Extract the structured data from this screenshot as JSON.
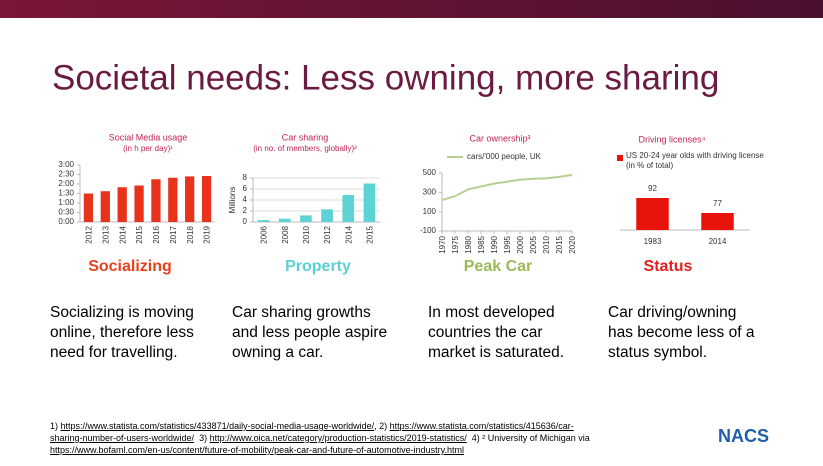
{
  "slide": {
    "title": "Societal needs: Less owning, more sharing",
    "panels": [
      {
        "caption": "Socializing",
        "color": "#e8401c",
        "text": [
          "Socializing is moving",
          "online, therefore less",
          "need for travelling."
        ]
      },
      {
        "caption": "Property",
        "color": "#5ccfd6",
        "text": [
          "Car sharing growths",
          "and less people aspire",
          "owning a car."
        ]
      },
      {
        "caption": "Peak Car",
        "color": "#9bbb59",
        "text": [
          "In most developed",
          "countries the car",
          "market is saturated."
        ]
      },
      {
        "caption": "Status",
        "color": "#e0201c",
        "text": [
          "Car driving/owning",
          "has become less of a",
          "status symbol."
        ]
      }
    ],
    "footnotes": [
      [
        "1) ",
        {
          "link": "https://www.statista.com/statistics/433871/daily-social-media-usage-worldwide/"
        },
        ", 2) ",
        {
          "link": "https://www.statista.com/statistics/415636/car-"
        }
      ],
      [
        {
          "link": "sharing-number-of-users-worldwide/"
        },
        "  3) ",
        {
          "link": "http://www.oica.net/category/production-statistics/2019-statistics/"
        },
        "  4) ² University of Michigan via"
      ],
      [
        {
          "link": "https://www.bofaml.com/en-us/content/future-of-mobility/peak-car-and-future-of-automotive-industry.html"
        }
      ]
    ],
    "logo": "NACS"
  },
  "chart_data": [
    {
      "type": "bar",
      "title": "Social Media usage",
      "subtitle": "(in h per day)¹",
      "color": "#e8331c",
      "categories": [
        "2012",
        "2013",
        "2014",
        "2015",
        "2016",
        "2017",
        "2018",
        "2019"
      ],
      "values": [
        1.5,
        1.62,
        1.83,
        1.92,
        2.25,
        2.33,
        2.4,
        2.42
      ],
      "ylim": [
        0,
        3
      ],
      "yticks": [
        {
          "value": 0,
          "label": "0:00"
        },
        {
          "value": 0.5,
          "label": "0:30"
        },
        {
          "value": 1,
          "label": "1:00"
        },
        {
          "value": 1.5,
          "label": "1:30"
        },
        {
          "value": 2,
          "label": "2:00"
        },
        {
          "value": 2.5,
          "label": "2:30"
        },
        {
          "value": 3,
          "label": "3:00"
        }
      ],
      "grid": false
    },
    {
      "type": "bar",
      "title": "Car sharing",
      "subtitle": "(in no. of members, globally)²",
      "y_label": "Millions",
      "color": "#5dd3d6",
      "categories": [
        "2006",
        "2008",
        "2010",
        "2012",
        "2014",
        "2015"
      ],
      "values": [
        0.35,
        0.6,
        1.2,
        2.3,
        4.9,
        7.0
      ],
      "ylim": [
        0,
        8
      ],
      "yticks": [
        0,
        2,
        4,
        6,
        8
      ],
      "grid": true
    },
    {
      "type": "line",
      "title": "Car ownership³",
      "x": [
        1970,
        1975,
        1980,
        1985,
        1990,
        1995,
        2000,
        2005,
        2010,
        2015,
        2020
      ],
      "xlim": [
        1970,
        2020
      ],
      "xticks": [
        1970,
        1975,
        1980,
        1985,
        1990,
        1995,
        2000,
        2005,
        2010,
        2015,
        2020
      ],
      "series": [
        {
          "name": "cars/'000 people, UK",
          "color": "#b8cf94",
          "values": [
            220,
            260,
            330,
            360,
            390,
            410,
            430,
            440,
            445,
            460,
            480
          ]
        }
      ],
      "ylim": [
        -100,
        500
      ],
      "yticks": [
        -100,
        100,
        300,
        500
      ],
      "grid": false
    },
    {
      "type": "bar",
      "title": "Driving licenses⁴",
      "series": [
        {
          "name": "US 20-24 year olds with driving license (in % of total)",
          "color": "#e8140c",
          "values": [
            92,
            77
          ]
        }
      ],
      "categories": [
        "1983",
        "2014"
      ],
      "ylim": [
        60,
        100
      ],
      "grid": false
    }
  ]
}
